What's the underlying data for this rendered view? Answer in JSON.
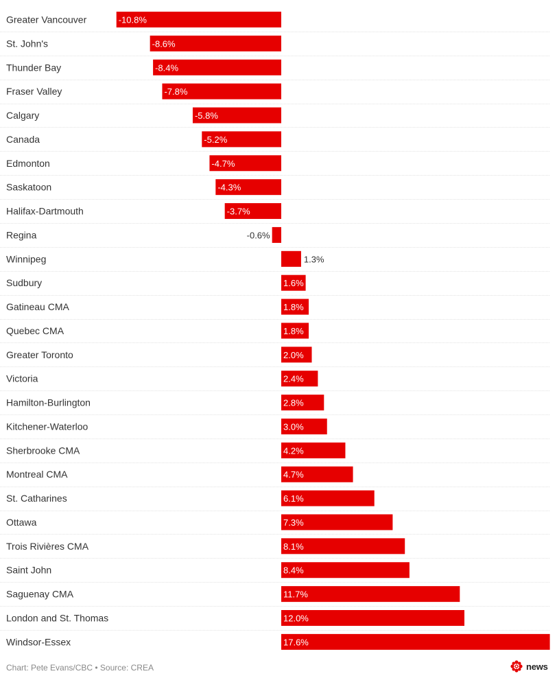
{
  "chart_data": {
    "type": "bar",
    "orientation": "horizontal",
    "categories": [
      "Greater Vancouver",
      "St. John's",
      "Thunder Bay",
      "Fraser Valley",
      "Calgary",
      "Canada",
      "Edmonton",
      "Saskatoon",
      "Halifax-Dartmouth",
      "Regina",
      "Winnipeg",
      "Sudbury",
      "Gatineau CMA",
      "Quebec CMA",
      "Greater Toronto",
      "Victoria",
      "Hamilton-Burlington",
      "Kitchener-Waterloo",
      "Sherbrooke CMA",
      "Montreal CMA",
      "St. Catharines",
      "Ottawa",
      "Trois Rivières CMA",
      "Saint John",
      "Saguenay CMA",
      "London and St. Thomas",
      "Windsor-Essex"
    ],
    "values": [
      -10.8,
      -8.6,
      -8.4,
      -7.8,
      -5.8,
      -5.2,
      -4.7,
      -4.3,
      -3.7,
      -0.6,
      1.3,
      1.6,
      1.8,
      1.8,
      2.0,
      2.4,
      2.8,
      3.0,
      4.2,
      4.7,
      6.1,
      7.3,
      8.1,
      8.4,
      11.7,
      12.0,
      17.6
    ],
    "value_labels": [
      "-10.8%",
      "-8.6%",
      "-8.4%",
      "-7.8%",
      "-5.8%",
      "-5.2%",
      "-4.7%",
      "-4.3%",
      "-3.7%",
      "-0.6%",
      "1.3%",
      "1.6%",
      "1.8%",
      "1.8%",
      "2.0%",
      "2.4%",
      "2.8%",
      "3.0%",
      "4.2%",
      "4.7%",
      "6.1%",
      "7.3%",
      "8.1%",
      "8.4%",
      "11.7%",
      "12.0%",
      "17.6%"
    ],
    "title": "",
    "xlabel": "",
    "ylabel": "",
    "xlim": [
      -10.8,
      17.6
    ],
    "grid": false,
    "legend": "none",
    "colors": {
      "bar": "#e60000",
      "row_separator": "#e2e2e2",
      "text": "#333333",
      "label_on_bar": "#ffffff"
    }
  },
  "footer": {
    "credit": "Chart: Pete Evans/CBC • Source: CREA",
    "logo_text": "news",
    "logo_icon": "cbc-gem-icon",
    "logo_color": "#e60000"
  }
}
